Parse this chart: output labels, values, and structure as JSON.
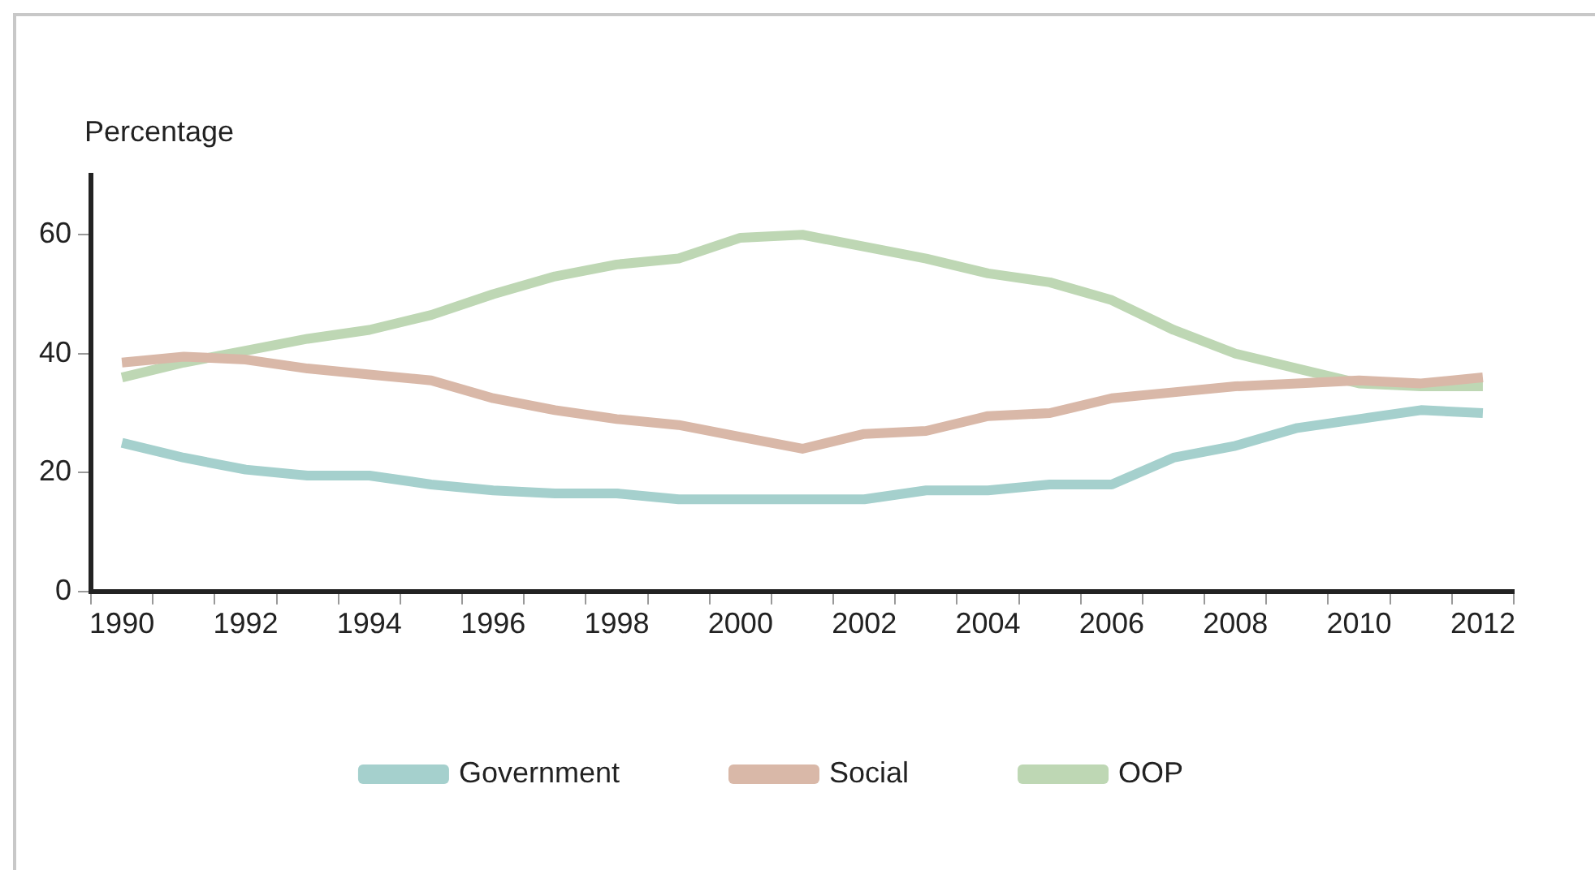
{
  "chart_data": {
    "type": "line",
    "ylabel": "Percentage",
    "categories": [
      "1990",
      null,
      "1992",
      null,
      "1994",
      null,
      "1996",
      null,
      "1998",
      null,
      "2000",
      null,
      "2002",
      null,
      "2004",
      null,
      "2006",
      null,
      "2008",
      null,
      "2010",
      null,
      "2012"
    ],
    "series": [
      {
        "name": "Government",
        "color": "#a5d0cd",
        "values": [
          25,
          22.5,
          20.5,
          19.5,
          19.5,
          18,
          17,
          16.5,
          16.5,
          15.5,
          15.5,
          15.5,
          15.5,
          17,
          17,
          18,
          18,
          22.5,
          24.5,
          27.5,
          29,
          30.5,
          30
        ]
      },
      {
        "name": "Social",
        "color": "#d9b8a8",
        "values": [
          38.5,
          39.5,
          39,
          37.5,
          36.5,
          35.5,
          32.5,
          30.5,
          29,
          28,
          26,
          24,
          26.5,
          27,
          29.5,
          30,
          32.5,
          33.5,
          34.5,
          35,
          35.5,
          35,
          36
        ]
      },
      {
        "name": "OOP",
        "color": "#bed7b4",
        "values": [
          36,
          38.5,
          40.5,
          42.5,
          44,
          46.5,
          50,
          53,
          55,
          56,
          59.5,
          60,
          58,
          56,
          53.5,
          52,
          49,
          44,
          40,
          37.5,
          35,
          34.5,
          34.5
        ]
      }
    ],
    "ylim": [
      0,
      70
    ],
    "yticks": [
      0,
      20,
      40,
      60
    ],
    "grid": false,
    "legend": "bottom",
    "marker": "none",
    "line_style": "solid"
  }
}
